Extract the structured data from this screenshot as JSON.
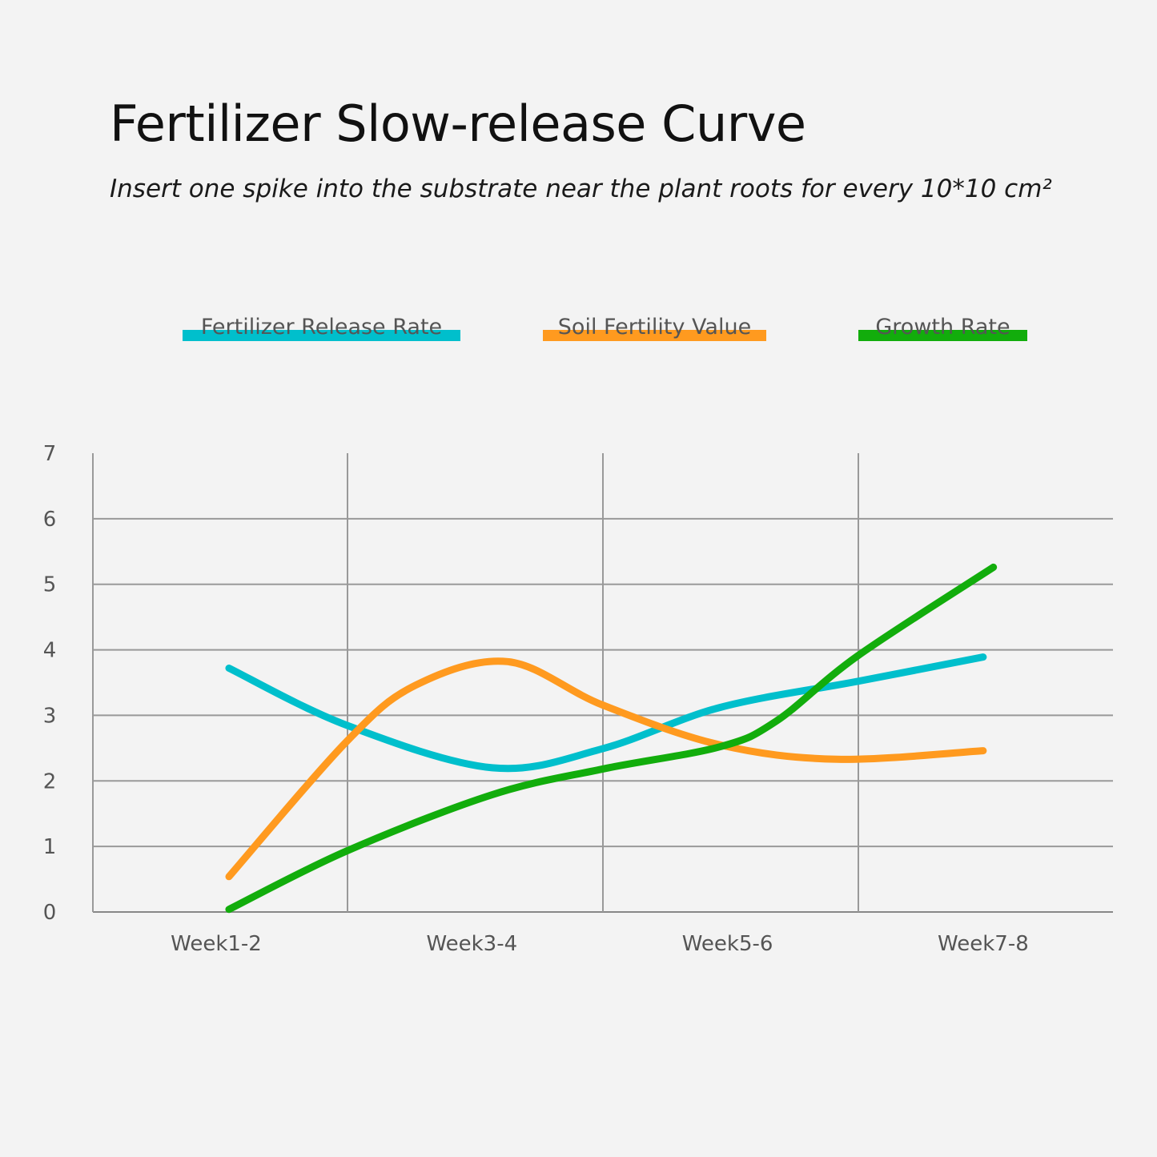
{
  "chart_data": {
    "type": "line",
    "title": "Fertilizer Slow-release Curve",
    "subtitle": "Insert one spike into the substrate near the plant roots for every 10*10 cm²",
    "categories": [
      "Week1-2",
      "Week3-4",
      "Week5-6",
      "Week7-8"
    ],
    "yticks": [
      "0",
      "1",
      "2",
      "3",
      "4",
      "5",
      "6",
      "7"
    ],
    "ylim": [
      0,
      7
    ],
    "grid": true,
    "legend_placement": "top",
    "smooth": true,
    "series": [
      {
        "name": "Fertilizer Release Rate",
        "color": "#00bfcc",
        "points": [
          [
            0.05,
            3.72
          ],
          [
            0.51,
            2.85
          ],
          [
            1.08,
            2.2
          ],
          [
            1.51,
            2.49
          ],
          [
            1.97,
            3.12
          ],
          [
            2.51,
            3.52
          ],
          [
            3.0,
            3.89
          ]
        ]
      },
      {
        "name": "Soil Fertility Value",
        "color": "#ff9a1f",
        "points": [
          [
            0.05,
            0.54
          ],
          [
            0.51,
            2.6
          ],
          [
            0.78,
            3.46
          ],
          [
            1.14,
            3.82
          ],
          [
            1.51,
            3.16
          ],
          [
            1.97,
            2.55
          ],
          [
            2.43,
            2.33
          ],
          [
            3.0,
            2.46
          ]
        ]
      },
      {
        "name": "Growth Rate",
        "color": "#12ad0c",
        "points": [
          [
            0.05,
            0.04
          ],
          [
            0.51,
            0.93
          ],
          [
            1.08,
            1.79
          ],
          [
            1.51,
            2.18
          ],
          [
            1.97,
            2.52
          ],
          [
            2.19,
            2.91
          ],
          [
            2.51,
            3.91
          ],
          [
            3.04,
            5.26
          ]
        ]
      }
    ]
  }
}
